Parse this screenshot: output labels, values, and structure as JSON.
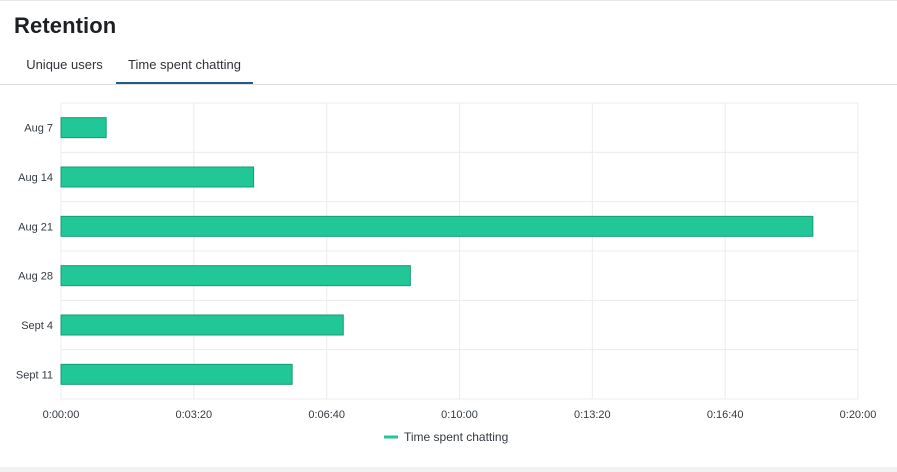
{
  "header": {
    "title": "Retention"
  },
  "tabs": [
    {
      "label": "Unique users",
      "active": false
    },
    {
      "label": "Time spent chatting",
      "active": true
    }
  ],
  "colors": {
    "bar": "#22c797",
    "bar_stroke": "#1a9a72",
    "tab_active": "#1f5b8c",
    "grid": "#ececec"
  },
  "chart_data": {
    "type": "bar",
    "orientation": "horizontal",
    "title": "",
    "xlabel": "",
    "ylabel": "",
    "categories": [
      "Aug 7",
      "Aug 14",
      "Aug 21",
      "Aug 28",
      "Sept 4",
      "Sept 11"
    ],
    "series": [
      {
        "name": "Time spent chatting",
        "values": [
          68,
          290,
          1132,
          526,
          425,
          348
        ]
      }
    ],
    "xlim": [
      0,
      1200
    ],
    "x_ticks": [
      0,
      200,
      400,
      600,
      800,
      1000,
      1200
    ],
    "x_tick_labels": [
      "0:00:00",
      "0:03:20",
      "0:06:40",
      "0:10:00",
      "0:13:20",
      "0:16:40",
      "0:20:00"
    ],
    "value_unit": "seconds",
    "grid": true,
    "legend": {
      "position": "bottom",
      "label": "Time spent chatting"
    }
  }
}
